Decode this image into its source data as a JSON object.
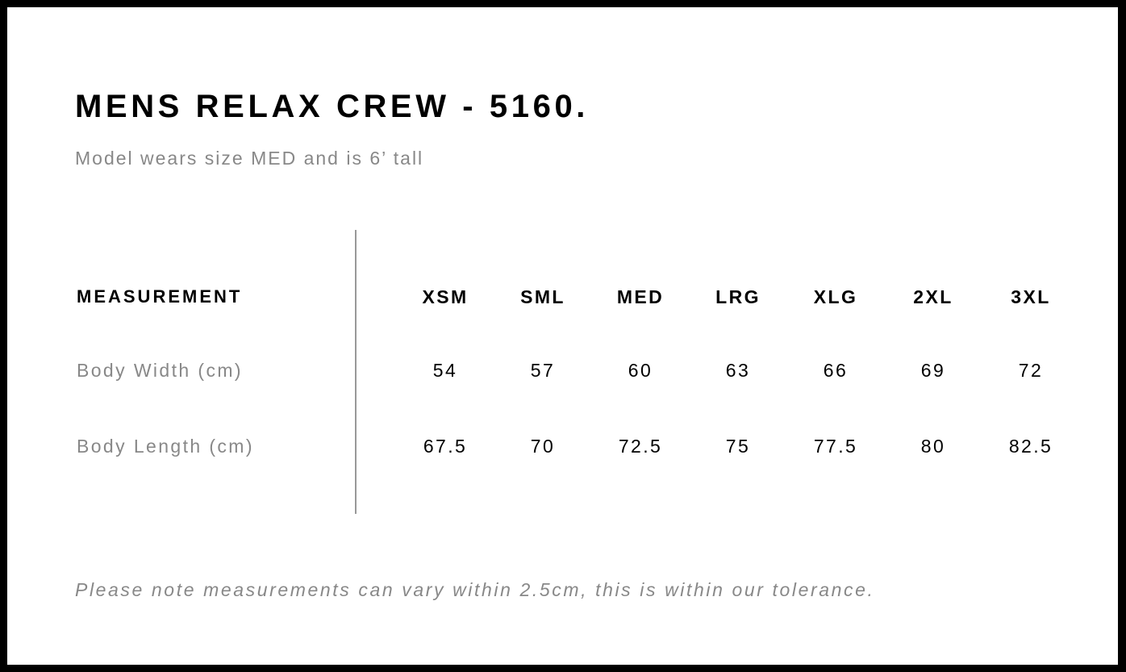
{
  "title": "MENS RELAX CREW - 5160.",
  "subtitle": "Model wears size MED and is 6’ tall",
  "table": {
    "header_label": "MEASUREMENT",
    "sizes": [
      "XSM",
      "SML",
      "MED",
      "LRG",
      "XLG",
      "2XL",
      "3XL"
    ],
    "rows": [
      {
        "label": "Body Width (cm)",
        "values": [
          "54",
          "57",
          "60",
          "63",
          "66",
          "69",
          "72"
        ]
      },
      {
        "label": "Body Length (cm)",
        "values": [
          "67.5",
          "70",
          "72.5",
          "75",
          "77.5",
          "80",
          "82.5"
        ]
      }
    ]
  },
  "note": "Please note measurements can vary within 2.5cm, this is within our tolerance."
}
